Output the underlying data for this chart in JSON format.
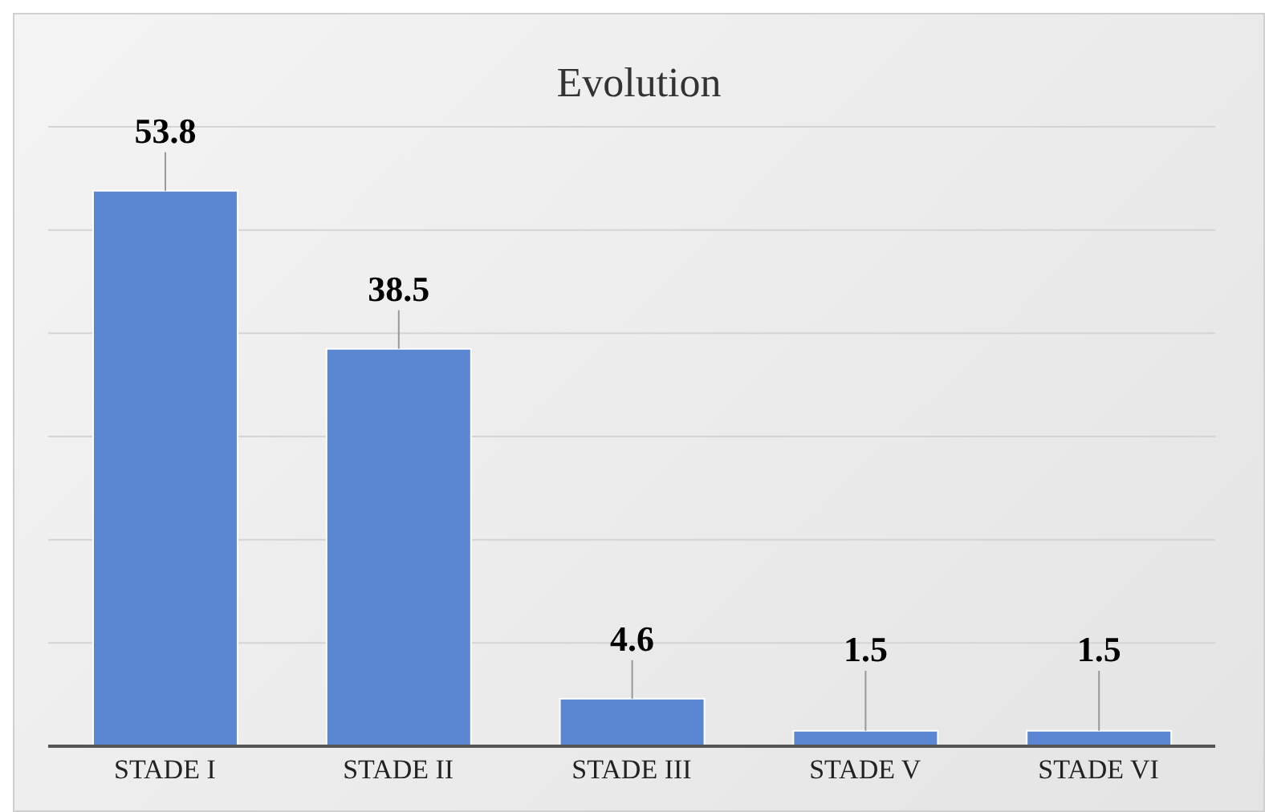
{
  "chart_data": {
    "type": "bar",
    "title": "Evolution",
    "categories": [
      "STADE I",
      "STADE II",
      "STADE III",
      "STADE V",
      "STADE VI"
    ],
    "values": [
      53.8,
      38.5,
      4.6,
      1.5,
      1.5
    ],
    "color": "#5b86d1",
    "ylim": [
      0,
      60
    ],
    "tick_labels": "x",
    "grid": "y",
    "data_labels": true
  }
}
